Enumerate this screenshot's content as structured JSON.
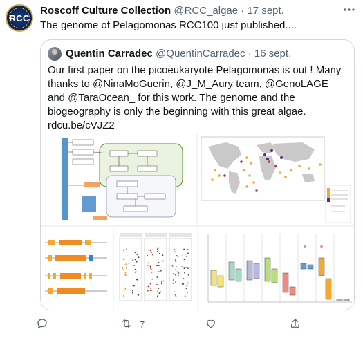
{
  "tweet": {
    "author_name": "Roscoff Culture Collection",
    "author_handle": "@RCC_algae",
    "separator": "·",
    "date": "17 sept.",
    "text": "The genome of Pelagomonas RCC100 just published....",
    "avatar_text": "RCC"
  },
  "quoted": {
    "author_name": "Quentin Carradec",
    "author_handle": "@QuentinCarradec",
    "separator": "·",
    "date": "16 sept.",
    "text": "Our first paper on the picoeukaryote Pelagomonas is out ! Many thanks to @NinaMoGuerin, @J_M_Aury team, @GenoLAGE and @TaraOcean_ for this work. The genome and the biogeography is only the beginning with this great algae.",
    "link": "rdcu.be/cVJZ2"
  },
  "actions": {
    "reply_count": "",
    "retweet_count": "7",
    "like_count": "",
    "share_count": ""
  },
  "icons": {
    "more": "more-icon",
    "reply": "reply-icon",
    "retweet": "retweet-icon",
    "like": "heart-icon",
    "share": "share-icon"
  },
  "colors": {
    "text": "#0f1419",
    "muted": "#536471",
    "border": "#cfd9de",
    "avatar_bg": "#0d2456",
    "avatar_ring": "#c9a44a"
  }
}
